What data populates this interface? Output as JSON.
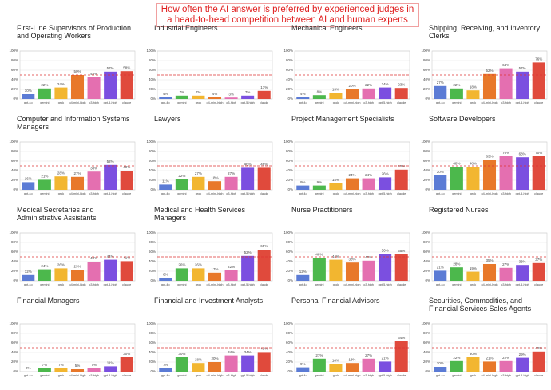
{
  "title": "How often the AI answer is preferred by experienced judges in a head-to-head competition between AI and human experts",
  "shared": {
    "categories": [
      "gpt-4o",
      "gemini",
      "grok",
      "o4-mini-high",
      "o3-high",
      "gpt-5-high",
      "claude"
    ],
    "colors": [
      "#5b7bd5",
      "#4cb84c",
      "#f2b630",
      "#e8782a",
      "#e46fb0",
      "#7b4fe0",
      "#e04a3c"
    ],
    "ylim": [
      0,
      100
    ],
    "yticks": [
      {
        "value": 0,
        "label": "0%"
      },
      {
        "value": 20,
        "label": "20%"
      },
      {
        "value": 40,
        "label": "40%"
      },
      {
        "value": 60,
        "label": "60%"
      },
      {
        "value": 80,
        "label": "80%"
      },
      {
        "value": 100,
        "label": "100%"
      }
    ],
    "reference_line": 50,
    "reference_color": "#d33"
  },
  "chart_data": [
    {
      "type": "bar",
      "title": "First-Line Supervisors of Production and Operating Workers",
      "values": [
        10,
        22,
        24,
        50,
        45,
        57,
        58
      ],
      "value_labels": [
        "10%",
        "22%",
        "24%",
        "50%",
        "45%",
        "57%",
        "58%"
      ]
    },
    {
      "type": "bar",
      "title": "Industrial Engineers",
      "values": [
        4,
        7,
        7,
        4,
        3,
        7,
        17
      ],
      "value_labels": [
        "4%",
        "7%",
        "7%",
        "4%",
        "3%",
        "7%",
        "17%"
      ]
    },
    {
      "type": "bar",
      "title": "Mechanical Engineers",
      "values": [
        4,
        8,
        13,
        20,
        22,
        24,
        23
      ],
      "value_labels": [
        "4%",
        "8%",
        "13%",
        "20%",
        "22%",
        "24%",
        "23%"
      ]
    },
    {
      "type": "bar",
      "title": "Shipping, Receiving, and Inventory Clerks",
      "values": [
        27,
        22,
        18,
        52,
        64,
        57,
        76
      ],
      "value_labels": [
        "27%",
        "22%",
        "18%",
        "52%",
        "64%",
        "57%",
        "76%"
      ]
    },
    {
      "type": "bar",
      "title": "Computer and Information Systems Managers",
      "values": [
        16,
        21,
        28,
        27,
        38,
        52,
        40
      ],
      "value_labels": [
        "16%",
        "21%",
        "28%",
        "27%",
        "38%",
        "52%",
        "40%"
      ]
    },
    {
      "type": "bar",
      "title": "Lawyers",
      "values": [
        11,
        22,
        27,
        18,
        27,
        46,
        46
      ],
      "value_labels": [
        "11%",
        "22%",
        "27%",
        "18%",
        "27%",
        "46%",
        "46%"
      ]
    },
    {
      "type": "bar",
      "title": "Project Management Specialists",
      "values": [
        9,
        9,
        14,
        24,
        24,
        26,
        42
      ],
      "value_labels": [
        "9%",
        "9%",
        "14%",
        "24%",
        "24%",
        "26%",
        "42%"
      ]
    },
    {
      "type": "bar",
      "title": "Software Developers",
      "values": [
        30,
        48,
        48,
        63,
        70,
        68,
        70
      ],
      "value_labels": [
        "30%",
        "48%",
        "48%",
        "63%",
        "70%",
        "68%",
        "70%"
      ]
    },
    {
      "type": "bar",
      "title": "Medical Secretaries and Administrative Assistants",
      "values": [
        12,
        24,
        26,
        23,
        40,
        44,
        41
      ],
      "value_labels": [
        "12%",
        "24%",
        "26%",
        "23%",
        "40%",
        "44%",
        "41%"
      ]
    },
    {
      "type": "bar",
      "title": "Medical and Health Services Managers",
      "values": [
        6,
        26,
        26,
        17,
        22,
        52,
        65
      ],
      "value_labels": [
        "6%",
        "26%",
        "26%",
        "17%",
        "22%",
        "52%",
        "65%"
      ]
    },
    {
      "type": "bar",
      "title": "Nurse Practitioners",
      "values": [
        12,
        48,
        44,
        38,
        42,
        56,
        55
      ],
      "value_labels": [
        "12%",
        "48%",
        "44%",
        "38%",
        "42%",
        "56%",
        "55%"
      ]
    },
    {
      "type": "bar",
      "title": "Registered Nurses",
      "values": [
        21,
        28,
        19,
        35,
        27,
        33,
        37
      ],
      "value_labels": [
        "21%",
        "28%",
        "19%",
        "35%",
        "27%",
        "33%",
        "37%"
      ]
    },
    {
      "type": "bar",
      "title": "Financial Managers",
      "values": [
        0,
        7,
        7,
        5,
        7,
        11,
        30
      ],
      "value_labels": [
        "0%",
        "7%",
        "7%",
        "5%",
        "7%",
        "11%",
        "30%"
      ]
    },
    {
      "type": "bar",
      "title": "Financial and Investment Analysts",
      "values": [
        7,
        30,
        18,
        20,
        34,
        34,
        41
      ],
      "value_labels": [
        "7%",
        "30%",
        "18%",
        "20%",
        "34%",
        "34%",
        "41%"
      ]
    },
    {
      "type": "bar",
      "title": "Personal Financial Advisors",
      "values": [
        9,
        27,
        16,
        18,
        27,
        21,
        64
      ],
      "value_labels": [
        "9%",
        "27%",
        "16%",
        "18%",
        "27%",
        "21%",
        "64%"
      ]
    },
    {
      "type": "bar",
      "title": "Securities, Commodities, and Financial Services Sales Agents",
      "values": [
        10,
        22,
        30,
        21,
        22,
        29,
        42
      ],
      "value_labels": [
        "10%",
        "22%",
        "30%",
        "21%",
        "22%",
        "29%",
        "42%"
      ]
    }
  ]
}
